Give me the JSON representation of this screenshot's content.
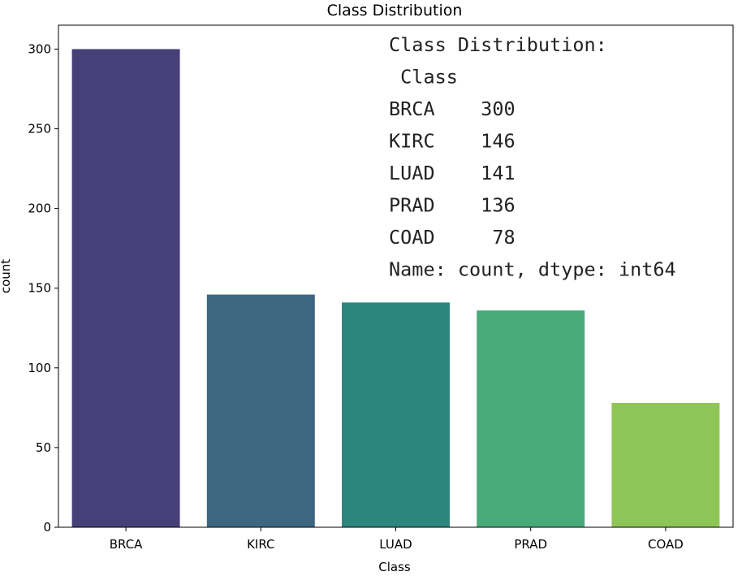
{
  "chart_data": {
    "type": "bar",
    "title": "Class Distribution",
    "xlabel": "Class",
    "ylabel": "count",
    "categories": [
      "BRCA",
      "KIRC",
      "LUAD",
      "PRAD",
      "COAD"
    ],
    "values": [
      300,
      146,
      141,
      136,
      78
    ],
    "colors": [
      "#463f78",
      "#3e6680",
      "#2c867d",
      "#48aa78",
      "#8ec557"
    ],
    "ylim": [
      0,
      315
    ],
    "yticks": [
      0,
      50,
      100,
      150,
      200,
      250,
      300
    ],
    "grid": false,
    "legend": "none"
  },
  "annotation": {
    "lines": [
      "Class Distribution:",
      " Class",
      "BRCA    300",
      "KIRC    146",
      "LUAD    141",
      "PRAD    136",
      "COAD     78",
      "Name: count, dtype: int64"
    ]
  }
}
